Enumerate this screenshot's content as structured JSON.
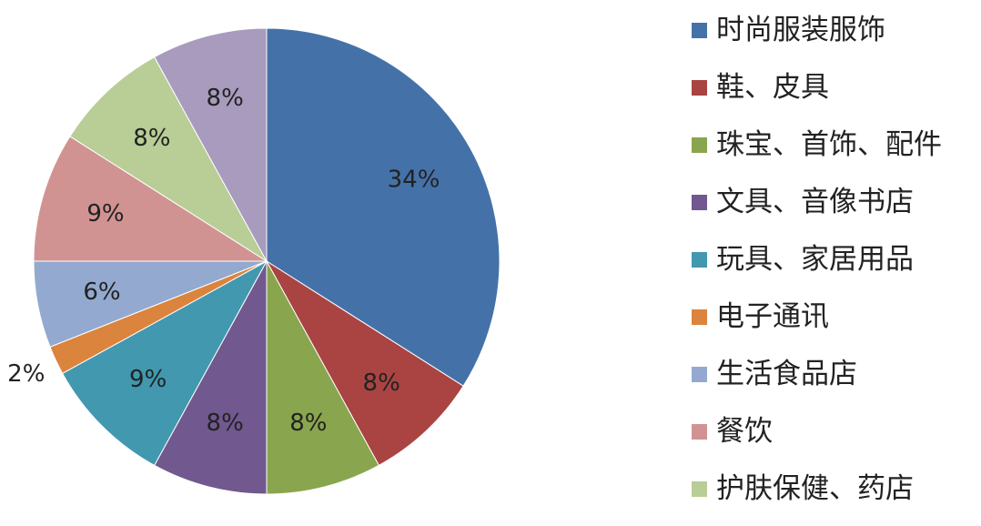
{
  "chart_data": {
    "type": "pie",
    "slices": [
      {
        "name": "时尚服装服饰",
        "value": 34,
        "label": "34%",
        "color": "#4472A8"
      },
      {
        "name": "鞋、皮具",
        "value": 8,
        "label": "8%",
        "color": "#A94442"
      },
      {
        "name": "珠宝、首饰、配件",
        "value": 8,
        "label": "8%",
        "color": "#89A54E"
      },
      {
        "name": "文具、音像书店",
        "value": 8,
        "label": "8%",
        "color": "#71588F"
      },
      {
        "name": "玩具、家居用品",
        "value": 9,
        "label": "9%",
        "color": "#4198AF"
      },
      {
        "name": "电子通讯",
        "value": 2,
        "label": "2%",
        "color": "#DB843D"
      },
      {
        "name": "生活食品店",
        "value": 6,
        "label": "6%",
        "color": "#93A9CF"
      },
      {
        "name": "餐饮",
        "value": 9,
        "label": "9%",
        "color": "#D19392"
      },
      {
        "name": "护肤保健、药店",
        "value": 8,
        "label": "8%",
        "color": "#B9CD96"
      },
      {
        "name": "",
        "value": 8,
        "label": "8%",
        "color": "#A99BBD"
      }
    ],
    "legend_position": "right",
    "start_angle": "top, clockwise"
  }
}
